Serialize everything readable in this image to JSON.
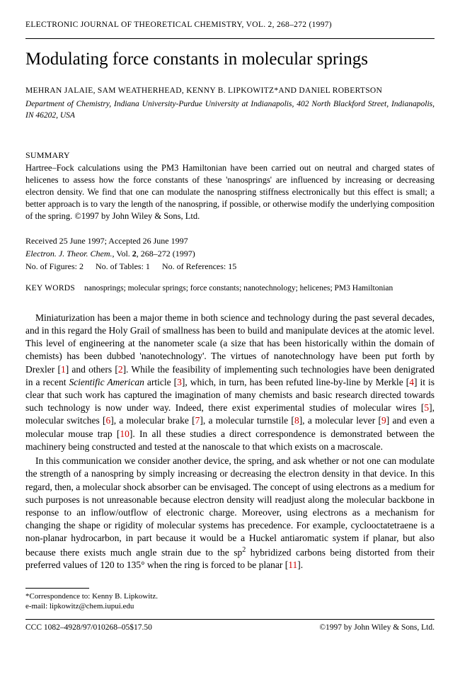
{
  "journal_header": "ELECTRONIC JOURNAL OF THEORETICAL CHEMISTRY, VOL. 2, 268–272 (1997)",
  "title": "Modulating force constants in molecular springs",
  "authors": "MEHRAN JALAIE, SAM WEATHERHEAD, KENNY B. LIPKOWITZ*AND DANIEL ROBERTSON",
  "affiliation": "Department of Chemistry, Indiana University-Purdue University at Indianapolis, 402 North Blackford Street, Indianapolis, IN 46202, USA",
  "summary_label": "SUMMARY",
  "summary_text": "Hartree–Fock calculations using the PM3 Hamiltonian have been carried out on neutral and charged states of helicenes to assess how the force constants of these 'nanosprings' are influenced by increasing or decreasing electron density. We find that one can modulate the nanospring stiffness electronically but this effect is small; a better approach is to vary the length of the nanospring, if possible, or otherwise modify the underlying composition of the spring. ©1997 by John Wiley & Sons, Ltd.",
  "received": "Received 25 June 1997; Accepted 26 June 1997",
  "citation_journal": "Electron. J. Theor. Chem.",
  "citation_rest": ", Vol. 2, 268–272 (1997)",
  "citation_vol_bold": "2",
  "counts": {
    "figures": "No. of Figures: 2",
    "tables": "No. of Tables: 1",
    "refs": "No. of References: 15"
  },
  "keywords_label": "KEY WORDS",
  "keywords": "nanosprings; molecular springs; force constants; nanotechnology; helicenes; PM3 Hamiltonian",
  "para1_a": "Miniaturization has been a major theme in both science and technology during the past several decades, and in this regard the Holy Grail of smallness has been to build and manipulate devices at the atomic level. This level of engineering at the nanometer scale (a size that has been historically within the domain of chemists) has been dubbed 'nanotechnology'. The virtues of nanotechnology have been put forth by Drexler [",
  "r1": "1",
  "para1_b": "] and others [",
  "r2": "2",
  "para1_c": "]. While the feasibility of implementing such technologies have been denigrated in a recent ",
  "sciam": "Scientific American",
  "para1_d": " article [",
  "r3": "3",
  "para1_e": "], which, in turn, has been refuted line-by-line by Merkle [",
  "r4": "4",
  "para1_f": "] it is clear that such work has captured the imagination of many chemists and basic research directed towards such technology is now under way. Indeed, there exist experimental studies of molecular wires [",
  "r5": "5",
  "para1_g": "], molecular switches [",
  "r6": "6",
  "para1_h": "], a molecular brake [",
  "r7": "7",
  "para1_i": "], a molecular turnstile [",
  "r8": "8",
  "para1_j": "], a molecular lever [",
  "r9": "9",
  "para1_k": "] and even a molecular mouse trap [",
  "r10": "10",
  "para1_l": "]. In all these studies a direct correspondence is demonstrated between the machinery being constructed and tested at the nanoscale to that which exists on a macroscale.",
  "para2_a": "In this communication we consider another device, the spring, and ask whether or not one can modulate the strength of a nanospring by simply increasing or decreasing the electron density in that device. In this regard, then, a molecular shock absorber can be envisaged. The concept of using electrons as a medium for such purposes is not unreasonable because electron density will readjust along the molecular backbone in response to an inflow/outflow of electronic charge. Moreover, using electrons as a mechanism for changing the shape or rigidity of molecular systems has precedence. For example, cyclooctatetraene is a non-planar hydrocarbon, in part because it would be a Huckel antiaromatic system if planar, but also because there exists much angle strain due to the sp",
  "sup2": "2",
  "para2_b": " hybridized carbons being distorted from their preferred values of 120 to 135° when the ring is forced to be planar [",
  "r11": "11",
  "para2_c": "].",
  "footnote1": "*Correspondence to: Kenny B. Lipkowitz.",
  "footnote2": "e-mail: lipkowitz@chem.iupui.edu",
  "footer_left": "CCC 1082–4928/97/010268–05$17.50",
  "footer_right": "©1997 by John Wiley & Sons, Ltd."
}
